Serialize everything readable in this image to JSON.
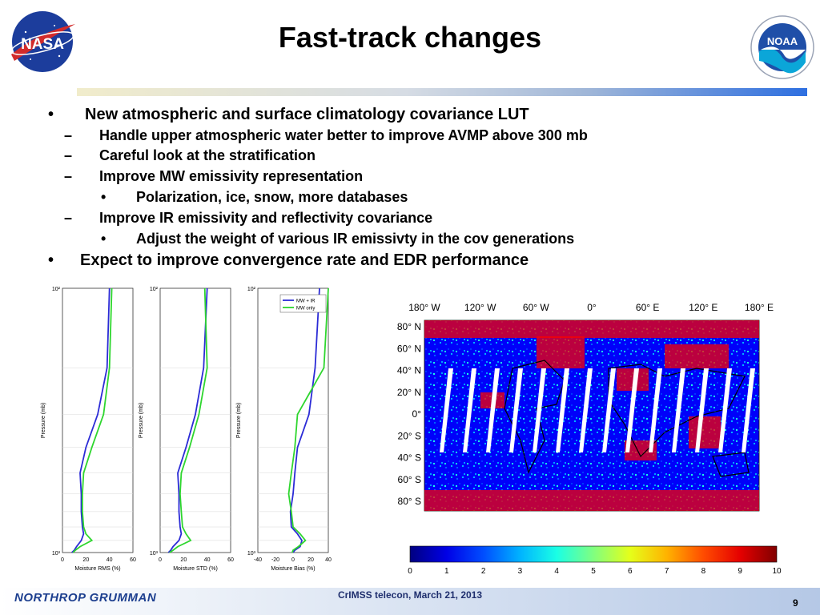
{
  "slide": {
    "title": "Fast-track changes",
    "page_number": "9",
    "footer": "CrIMSS telecon, March 21, 2013"
  },
  "logos": {
    "left": "NASA",
    "right": "NOAA",
    "right_ring": "NATIONAL OCEANIC AND ATMOSPHERIC ADMINISTRATION · U.S. DEPARTMENT OF COMMERCE",
    "footer": "NORTHROP GRUMMAN"
  },
  "bullets": [
    {
      "level": 1,
      "marker": "•",
      "text": "New atmospheric and surface climatology covariance LUT"
    },
    {
      "level": 2,
      "marker": "–",
      "text": "Handle upper atmospheric water better to improve AVMP above 300 mb"
    },
    {
      "level": 2,
      "marker": "–",
      "text": "Careful look at the stratification"
    },
    {
      "level": 2,
      "marker": "–",
      "text": "Improve MW emissivity representation"
    },
    {
      "level": 3,
      "marker": "•",
      "text": "Polarization, ice, snow, more databases"
    },
    {
      "level": 2,
      "marker": "–",
      "text": "Improve IR emissivity and reflectivity covariance"
    },
    {
      "level": 3,
      "marker": "•",
      "text": "Adjust the weight of  various IR emissivty in the cov generations"
    },
    {
      "level": 1,
      "marker": "•",
      "text": "Expect to improve convergence rate and EDR performance"
    }
  ],
  "chart_data": [
    {
      "type": "line",
      "xlabel": "Moisture RMS (%)",
      "ylabel": "Pressure (mb)",
      "xlim": [
        0,
        60
      ],
      "xticks": [
        "0",
        "20",
        "40",
        "60"
      ],
      "ylim": [
        100,
        1000
      ],
      "yscale": "log",
      "yticks": [
        "10²",
        "10³"
      ],
      "series": [
        {
          "name": "MW + IR",
          "color": "#2b2bd6",
          "x": [
            40,
            38,
            30,
            20,
            15,
            16,
            16,
            17,
            18,
            16,
            12,
            10,
            8
          ],
          "y": [
            100,
            200,
            300,
            400,
            500,
            600,
            700,
            800,
            850,
            900,
            950,
            980,
            1000
          ]
        },
        {
          "name": "MW only",
          "color": "#2ed62e",
          "x": [
            42,
            40,
            35,
            25,
            18,
            17,
            17,
            18,
            20,
            25,
            15,
            11,
            9
          ],
          "y": [
            100,
            200,
            300,
            400,
            500,
            600,
            700,
            800,
            850,
            900,
            950,
            980,
            1000
          ]
        }
      ]
    },
    {
      "type": "line",
      "xlabel": "Moisture STD (%)",
      "ylabel": "Pressure (mb)",
      "xlim": [
        0,
        60
      ],
      "xticks": [
        "0",
        "20",
        "40",
        "60"
      ],
      "ylim": [
        100,
        1000
      ],
      "yscale": "log",
      "yticks": [
        "10²",
        "10³"
      ],
      "series": [
        {
          "name": "MW + IR",
          "color": "#2b2bd6",
          "x": [
            40,
            37,
            30,
            22,
            15,
            16,
            16,
            17,
            18,
            16,
            11,
            9,
            7
          ],
          "y": [
            100,
            200,
            300,
            400,
            500,
            600,
            700,
            800,
            850,
            900,
            950,
            980,
            1000
          ]
        },
        {
          "name": "MW only",
          "color": "#2ed62e",
          "x": [
            38,
            40,
            33,
            25,
            18,
            17,
            18,
            19,
            22,
            26,
            15,
            11,
            8
          ],
          "y": [
            100,
            200,
            300,
            400,
            500,
            600,
            700,
            800,
            850,
            900,
            950,
            980,
            1000
          ]
        }
      ]
    },
    {
      "type": "line",
      "xlabel": "Moisture Bias (%)",
      "ylabel": "Pressure (mb)",
      "xlim": [
        -40,
        40
      ],
      "xticks": [
        "-40",
        "-20",
        "0",
        "20",
        "40"
      ],
      "ylim": [
        100,
        1000
      ],
      "yscale": "log",
      "yticks": [
        "10²",
        "10³"
      ],
      "legend": "top-right",
      "series": [
        {
          "name": "MW + IR",
          "color": "#2b2bd6",
          "x": [
            30,
            25,
            18,
            5,
            2,
            0,
            -3,
            -2,
            5,
            10,
            8,
            2,
            0
          ],
          "y": [
            100,
            200,
            300,
            400,
            500,
            600,
            700,
            800,
            850,
            900,
            950,
            980,
            1000
          ]
        },
        {
          "name": "MW only",
          "color": "#2ed62e",
          "x": [
            40,
            35,
            5,
            2,
            -2,
            -5,
            -2,
            0,
            8,
            14,
            6,
            0,
            -1
          ],
          "y": [
            100,
            200,
            300,
            400,
            500,
            600,
            700,
            800,
            850,
            900,
            950,
            980,
            1000
          ]
        }
      ]
    },
    {
      "type": "heatmap",
      "x_ticks": [
        "180° W",
        "120° W",
        "60° W",
        "0°",
        "60° E",
        "120° E",
        "180° E"
      ],
      "y_ticks": [
        "80° N",
        "60° N",
        "40° N",
        "20° N",
        "0°",
        "20° S",
        "40° S",
        "60° S",
        "80° S"
      ],
      "colorbar_ticks": [
        "0",
        "1",
        "2",
        "3",
        "4",
        "5",
        "6",
        "7",
        "8",
        "9",
        "10"
      ],
      "colorbar_range": [
        0,
        10
      ],
      "colormap": "jet"
    }
  ]
}
